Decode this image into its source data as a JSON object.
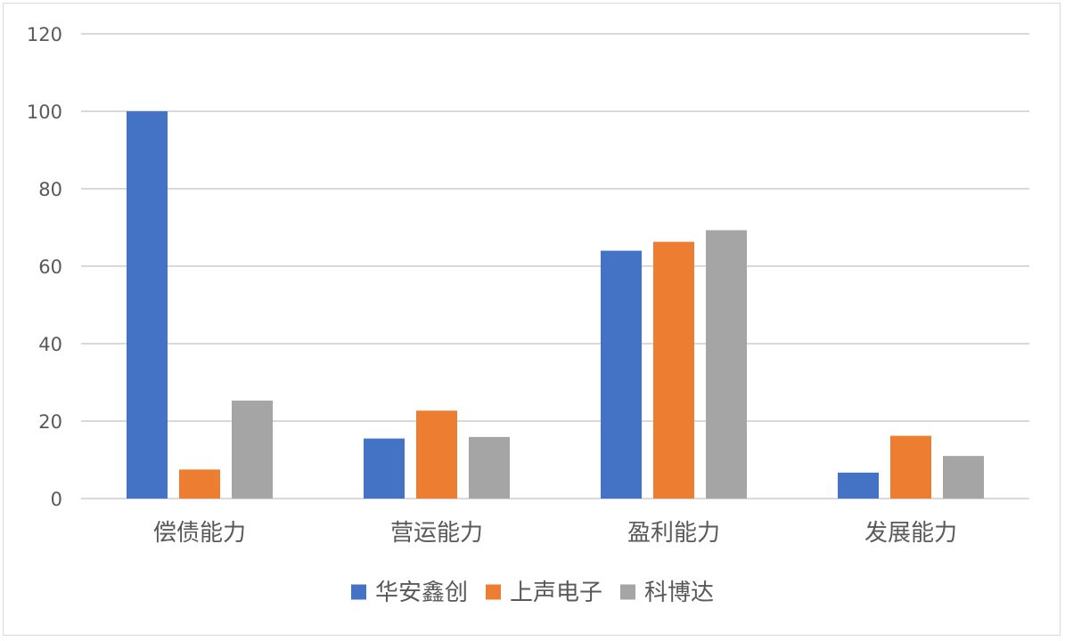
{
  "chart_data": {
    "type": "bar",
    "categories": [
      "偿债能力",
      "营运能力",
      "盈利能力",
      "发展能力"
    ],
    "series": [
      {
        "name": "华安鑫创",
        "color": "#4472C4",
        "values": [
          100,
          15.5,
          64,
          6.7
        ]
      },
      {
        "name": "上声电子",
        "color": "#ED7D31",
        "values": [
          7.5,
          22.7,
          66.3,
          16.2
        ]
      },
      {
        "name": "科博达",
        "color": "#A5A5A5",
        "values": [
          25.3,
          15.9,
          69.3,
          11
        ]
      }
    ],
    "yticks": [
      "0",
      "20",
      "40",
      "60",
      "80",
      "100",
      "120"
    ],
    "ylim": [
      0,
      120
    ],
    "grid": true,
    "gridColor": "#d9d9d9",
    "legend_position": "bottom"
  }
}
